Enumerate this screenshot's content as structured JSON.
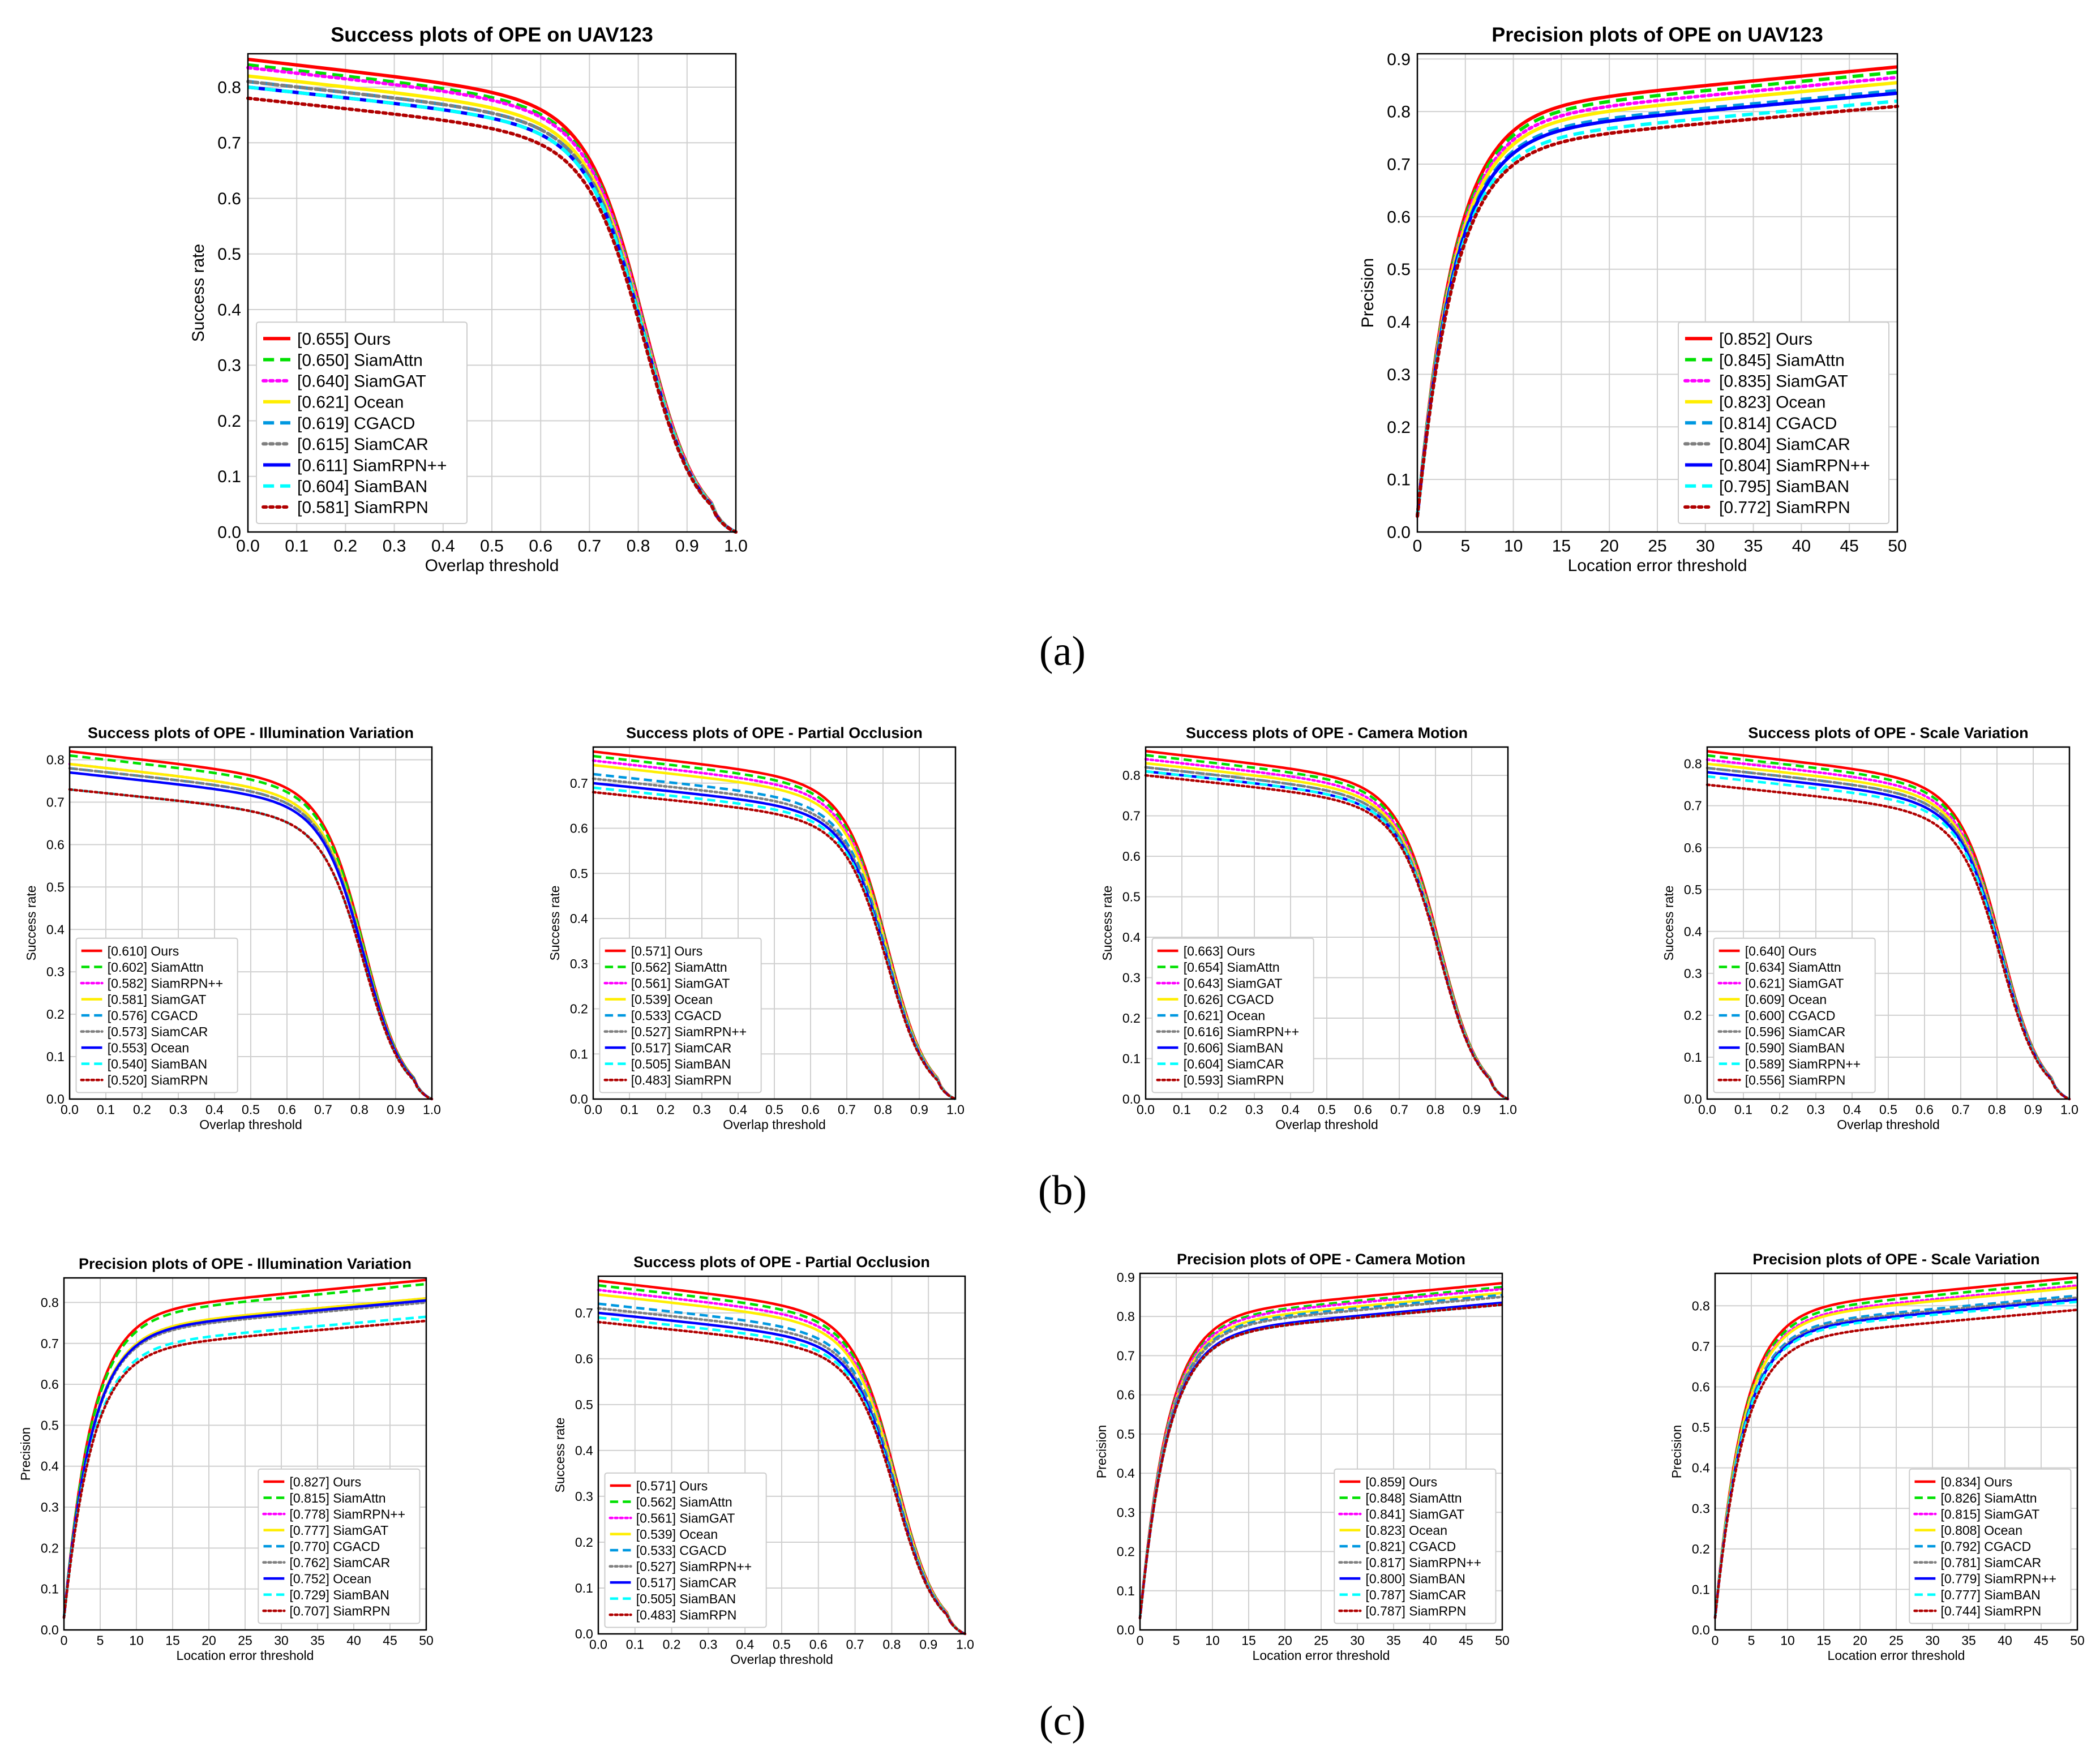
{
  "figure": {
    "panel_labels": [
      "(a)",
      "(b)",
      "(c)"
    ]
  },
  "styles": [
    {
      "color": "#ff0000",
      "dash": "none"
    },
    {
      "color": "#00e000",
      "dash": "dash"
    },
    {
      "color": "#ff00ff",
      "dash": "dot"
    },
    {
      "color": "#ffee00",
      "dash": "none"
    },
    {
      "color": "#0098e0",
      "dash": "dash"
    },
    {
      "color": "#7f7f7f",
      "dash": "dot"
    },
    {
      "color": "#0000ff",
      "dash": "none"
    },
    {
      "color": "#00ffff",
      "dash": "dash"
    },
    {
      "color": "#b00000",
      "dash": "dot"
    }
  ],
  "chart_data": [
    {
      "type": "line",
      "kind": "success",
      "title": "Success plots of OPE on UAV123",
      "xlabel": "Overlap threshold",
      "ylabel": "Success rate",
      "xlim": [
        0,
        1.0
      ],
      "ylim": [
        0,
        0.86
      ],
      "xticks": [
        "0.0",
        "0.1",
        "0.2",
        "0.3",
        "0.4",
        "0.5",
        "0.6",
        "0.7",
        "0.8",
        "0.9",
        "1.0"
      ],
      "yticks": [
        "0.0",
        "0.1",
        "0.2",
        "0.3",
        "0.4",
        "0.5",
        "0.6",
        "0.7",
        "0.8"
      ],
      "legend_position": "lower-left",
      "series": [
        {
          "name": "[0.655] Ours",
          "style": 0,
          "start": 0.85
        },
        {
          "name": "[0.650] SiamAttn",
          "style": 1,
          "start": 0.84
        },
        {
          "name": "[0.640] SiamGAT",
          "style": 2,
          "start": 0.835
        },
        {
          "name": "[0.621] Ocean",
          "style": 3,
          "start": 0.82
        },
        {
          "name": "[0.619] CGACD",
          "style": 4,
          "start": 0.81
        },
        {
          "name": "[0.615] SiamCAR",
          "style": 5,
          "start": 0.81
        },
        {
          "name": "[0.611] SiamRPN++",
          "style": 6,
          "start": 0.8
        },
        {
          "name": "[0.604] SiamBAN",
          "style": 7,
          "start": 0.8
        },
        {
          "name": "[0.581] SiamRPN",
          "style": 8,
          "start": 0.78
        }
      ]
    },
    {
      "type": "line",
      "kind": "precision",
      "title": "Precision plots of OPE on UAV123",
      "xlabel": "Location error threshold",
      "ylabel": "Precision",
      "xlim": [
        0,
        50
      ],
      "ylim": [
        0,
        0.91
      ],
      "xticks": [
        "0",
        "5",
        "10",
        "15",
        "20",
        "25",
        "30",
        "35",
        "40",
        "45",
        "50"
      ],
      "yticks": [
        "0.0",
        "0.1",
        "0.2",
        "0.3",
        "0.4",
        "0.5",
        "0.6",
        "0.7",
        "0.8",
        "0.9"
      ],
      "legend_position": "lower-right",
      "series": [
        {
          "name": "[0.852] Ours",
          "style": 0,
          "end": 0.885
        },
        {
          "name": "[0.845] SiamAttn",
          "style": 1,
          "end": 0.875
        },
        {
          "name": "[0.835] SiamGAT",
          "style": 2,
          "end": 0.865
        },
        {
          "name": "[0.823] Ocean",
          "style": 3,
          "end": 0.855
        },
        {
          "name": "[0.814] CGACD",
          "style": 4,
          "end": 0.84
        },
        {
          "name": "[0.804] SiamCAR",
          "style": 5,
          "end": 0.835
        },
        {
          "name": "[0.804] SiamRPN++",
          "style": 6,
          "end": 0.835
        },
        {
          "name": "[0.795] SiamBAN",
          "style": 7,
          "end": 0.82
        },
        {
          "name": "[0.772] SiamRPN",
          "style": 8,
          "end": 0.81
        }
      ]
    },
    {
      "type": "line",
      "kind": "success",
      "title": "Success plots of OPE - Illumination Variation",
      "xlabel": "Overlap threshold",
      "ylabel": "Success rate",
      "xlim": [
        0,
        1.0
      ],
      "ylim": [
        0,
        0.83
      ],
      "xticks": [
        "0.0",
        "0.1",
        "0.2",
        "0.3",
        "0.4",
        "0.5",
        "0.6",
        "0.7",
        "0.8",
        "0.9",
        "1.0"
      ],
      "yticks": [
        "0.0",
        "0.1",
        "0.2",
        "0.3",
        "0.4",
        "0.5",
        "0.6",
        "0.7",
        "0.8"
      ],
      "legend_position": "lower-left",
      "series": [
        {
          "name": "[0.610] Ours",
          "style": 0,
          "start": 0.82
        },
        {
          "name": "[0.602] SiamAttn",
          "style": 1,
          "start": 0.81
        },
        {
          "name": "[0.582] SiamRPN++",
          "style": 2,
          "start": 0.79
        },
        {
          "name": "[0.581] SiamGAT",
          "style": 3,
          "start": 0.79
        },
        {
          "name": "[0.576] CGACD",
          "style": 4,
          "start": 0.78
        },
        {
          "name": "[0.573] SiamCAR",
          "style": 5,
          "start": 0.78
        },
        {
          "name": "[0.553] Ocean",
          "style": 6,
          "start": 0.77
        },
        {
          "name": "[0.540] SiamBAN",
          "style": 7,
          "start": 0.73
        },
        {
          "name": "[0.520] SiamRPN",
          "style": 8,
          "start": 0.73
        }
      ]
    },
    {
      "type": "line",
      "kind": "success",
      "title": "Success plots of OPE - Partial Occlusion",
      "xlabel": "Overlap threshold",
      "ylabel": "Success rate",
      "xlim": [
        0,
        1.0
      ],
      "ylim": [
        0,
        0.78
      ],
      "xticks": [
        "0.0",
        "0.1",
        "0.2",
        "0.3",
        "0.4",
        "0.5",
        "0.6",
        "0.7",
        "0.8",
        "0.9",
        "1.0"
      ],
      "yticks": [
        "0.0",
        "0.1",
        "0.2",
        "0.3",
        "0.4",
        "0.5",
        "0.6",
        "0.7"
      ],
      "legend_position": "lower-left",
      "series": [
        {
          "name": "[0.571] Ours",
          "style": 0,
          "start": 0.77
        },
        {
          "name": "[0.562] SiamAttn",
          "style": 1,
          "start": 0.76
        },
        {
          "name": "[0.561] SiamGAT",
          "style": 2,
          "start": 0.75
        },
        {
          "name": "[0.539] Ocean",
          "style": 3,
          "start": 0.74
        },
        {
          "name": "[0.533] CGACD",
          "style": 4,
          "start": 0.72
        },
        {
          "name": "[0.527] SiamRPN++",
          "style": 5,
          "start": 0.71
        },
        {
          "name": "[0.517] SiamCAR",
          "style": 6,
          "start": 0.7
        },
        {
          "name": "[0.505] SiamBAN",
          "style": 7,
          "start": 0.69
        },
        {
          "name": "[0.483] SiamRPN",
          "style": 8,
          "start": 0.68
        }
      ]
    },
    {
      "type": "line",
      "kind": "success",
      "title": "Success plots of OPE - Camera Motion",
      "xlabel": "Overlap threshold",
      "ylabel": "Success rate",
      "xlim": [
        0,
        1.0
      ],
      "ylim": [
        0,
        0.87
      ],
      "xticks": [
        "0.0",
        "0.1",
        "0.2",
        "0.3",
        "0.4",
        "0.5",
        "0.6",
        "0.7",
        "0.8",
        "0.9",
        "1.0"
      ],
      "yticks": [
        "0.0",
        "0.1",
        "0.2",
        "0.3",
        "0.4",
        "0.5",
        "0.6",
        "0.7",
        "0.8"
      ],
      "legend_position": "lower-left",
      "series": [
        {
          "name": "[0.663] Ours",
          "style": 0,
          "start": 0.86
        },
        {
          "name": "[0.654] SiamAttn",
          "style": 1,
          "start": 0.85
        },
        {
          "name": "[0.643] SiamGAT",
          "style": 2,
          "start": 0.84
        },
        {
          "name": "[0.626] CGACD",
          "style": 3,
          "start": 0.83
        },
        {
          "name": "[0.621] Ocean",
          "style": 4,
          "start": 0.82
        },
        {
          "name": "[0.616] SiamRPN++",
          "style": 5,
          "start": 0.82
        },
        {
          "name": "[0.606] SiamBAN",
          "style": 6,
          "start": 0.81
        },
        {
          "name": "[0.604] SiamCAR",
          "style": 7,
          "start": 0.81
        },
        {
          "name": "[0.593] SiamRPN",
          "style": 8,
          "start": 0.8
        }
      ]
    },
    {
      "type": "line",
      "kind": "success",
      "title": "Success plots of OPE - Scale Variation",
      "xlabel": "Overlap threshold",
      "ylabel": "Success rate",
      "xlim": [
        0,
        1.0
      ],
      "ylim": [
        0,
        0.84
      ],
      "xticks": [
        "0.0",
        "0.1",
        "0.2",
        "0.3",
        "0.4",
        "0.5",
        "0.6",
        "0.7",
        "0.8",
        "0.9",
        "1.0"
      ],
      "yticks": [
        "0.0",
        "0.1",
        "0.2",
        "0.3",
        "0.4",
        "0.5",
        "0.6",
        "0.7",
        "0.8"
      ],
      "legend_position": "lower-left",
      "series": [
        {
          "name": "[0.640] Ours",
          "style": 0,
          "start": 0.83
        },
        {
          "name": "[0.634] SiamAttn",
          "style": 1,
          "start": 0.82
        },
        {
          "name": "[0.621] SiamGAT",
          "style": 2,
          "start": 0.81
        },
        {
          "name": "[0.609] Ocean",
          "style": 3,
          "start": 0.8
        },
        {
          "name": "[0.600] CGACD",
          "style": 4,
          "start": 0.79
        },
        {
          "name": "[0.596] SiamCAR",
          "style": 5,
          "start": 0.79
        },
        {
          "name": "[0.590] SiamBAN",
          "style": 6,
          "start": 0.78
        },
        {
          "name": "[0.589] SiamRPN++",
          "style": 7,
          "start": 0.77
        },
        {
          "name": "[0.556] SiamRPN",
          "style": 8,
          "start": 0.75
        }
      ]
    },
    {
      "type": "line",
      "kind": "precision",
      "title": "Precision plots of OPE - Illumination Variation",
      "xlabel": "Location error threshold",
      "ylabel": "Precision",
      "xlim": [
        0,
        50
      ],
      "ylim": [
        0,
        0.86
      ],
      "xticks": [
        "0",
        "5",
        "10",
        "15",
        "20",
        "25",
        "30",
        "35",
        "40",
        "45",
        "50"
      ],
      "yticks": [
        "0.0",
        "0.1",
        "0.2",
        "0.3",
        "0.4",
        "0.5",
        "0.6",
        "0.7",
        "0.8"
      ],
      "legend_position": "lower-right",
      "series": [
        {
          "name": "[0.827] Ours",
          "style": 0,
          "end": 0.855
        },
        {
          "name": "[0.815] SiamAttn",
          "style": 1,
          "end": 0.845
        },
        {
          "name": "[0.778] SiamRPN++",
          "style": 2,
          "end": 0.81
        },
        {
          "name": "[0.777] SiamGAT",
          "style": 3,
          "end": 0.81
        },
        {
          "name": "[0.770] CGACD",
          "style": 4,
          "end": 0.805
        },
        {
          "name": "[0.762] SiamCAR",
          "style": 5,
          "end": 0.8
        },
        {
          "name": "[0.752] Ocean",
          "style": 6,
          "end": 0.805
        },
        {
          "name": "[0.729] SiamBAN",
          "style": 7,
          "end": 0.765
        },
        {
          "name": "[0.707] SiamRPN",
          "style": 8,
          "end": 0.755
        }
      ]
    },
    {
      "type": "line",
      "kind": "success",
      "title": "Success plots of OPE - Partial Occlusion",
      "xlabel": "Overlap threshold",
      "ylabel": "Success rate",
      "xlim": [
        0,
        1.0
      ],
      "ylim": [
        0,
        0.78
      ],
      "xticks": [
        "0.0",
        "0.1",
        "0.2",
        "0.3",
        "0.4",
        "0.5",
        "0.6",
        "0.7",
        "0.8",
        "0.9",
        "1.0"
      ],
      "yticks": [
        "0.0",
        "0.1",
        "0.2",
        "0.3",
        "0.4",
        "0.5",
        "0.6",
        "0.7"
      ],
      "legend_position": "lower-left",
      "series": [
        {
          "name": "[0.571] Ours",
          "style": 0,
          "start": 0.77
        },
        {
          "name": "[0.562] SiamAttn",
          "style": 1,
          "start": 0.76
        },
        {
          "name": "[0.561] SiamGAT",
          "style": 2,
          "start": 0.75
        },
        {
          "name": "[0.539] Ocean",
          "style": 3,
          "start": 0.74
        },
        {
          "name": "[0.533] CGACD",
          "style": 4,
          "start": 0.72
        },
        {
          "name": "[0.527] SiamRPN++",
          "style": 5,
          "start": 0.71
        },
        {
          "name": "[0.517] SiamCAR",
          "style": 6,
          "start": 0.7
        },
        {
          "name": "[0.505] SiamBAN",
          "style": 7,
          "start": 0.69
        },
        {
          "name": "[0.483] SiamRPN",
          "style": 8,
          "start": 0.68
        }
      ]
    },
    {
      "type": "line",
      "kind": "precision",
      "title": "Precision plots of OPE - Camera Motion",
      "xlabel": "Location error threshold",
      "ylabel": "Precision",
      "xlim": [
        0,
        50
      ],
      "ylim": [
        0,
        0.91
      ],
      "xticks": [
        "0",
        "5",
        "10",
        "15",
        "20",
        "25",
        "30",
        "35",
        "40",
        "45",
        "50"
      ],
      "yticks": [
        "0.0",
        "0.1",
        "0.2",
        "0.3",
        "0.4",
        "0.5",
        "0.6",
        "0.7",
        "0.8",
        "0.9"
      ],
      "legend_position": "lower-right",
      "series": [
        {
          "name": "[0.859] Ours",
          "style": 0,
          "end": 0.885
        },
        {
          "name": "[0.848] SiamAttn",
          "style": 1,
          "end": 0.875
        },
        {
          "name": "[0.841] SiamGAT",
          "style": 2,
          "end": 0.87
        },
        {
          "name": "[0.823] Ocean",
          "style": 3,
          "end": 0.86
        },
        {
          "name": "[0.821] CGACD",
          "style": 4,
          "end": 0.855
        },
        {
          "name": "[0.817] SiamRPN++",
          "style": 5,
          "end": 0.85
        },
        {
          "name": "[0.800] SiamBAN",
          "style": 6,
          "end": 0.835
        },
        {
          "name": "[0.787] SiamCAR",
          "style": 7,
          "end": 0.83
        },
        {
          "name": "[0.787] SiamRPN",
          "style": 8,
          "end": 0.83
        }
      ]
    },
    {
      "type": "line",
      "kind": "precision",
      "title": "Precision plots of OPE - Scale Variation",
      "xlabel": "Location error threshold",
      "ylabel": "Precision",
      "xlim": [
        0,
        50
      ],
      "ylim": [
        0,
        0.88
      ],
      "xticks": [
        "0",
        "5",
        "10",
        "15",
        "20",
        "25",
        "30",
        "35",
        "40",
        "45",
        "50"
      ],
      "yticks": [
        "0.0",
        "0.1",
        "0.2",
        "0.3",
        "0.4",
        "0.5",
        "0.6",
        "0.7",
        "0.8"
      ],
      "legend_position": "lower-right",
      "series": [
        {
          "name": "[0.834] Ours",
          "style": 0,
          "end": 0.87
        },
        {
          "name": "[0.826] SiamAttn",
          "style": 1,
          "end": 0.86
        },
        {
          "name": "[0.815] SiamGAT",
          "style": 2,
          "end": 0.85
        },
        {
          "name": "[0.808] Ocean",
          "style": 3,
          "end": 0.845
        },
        {
          "name": "[0.792] CGACD",
          "style": 4,
          "end": 0.825
        },
        {
          "name": "[0.781] SiamCAR",
          "style": 5,
          "end": 0.82
        },
        {
          "name": "[0.779] SiamRPN++",
          "style": 6,
          "end": 0.815
        },
        {
          "name": "[0.777] SiamBAN",
          "style": 7,
          "end": 0.81
        },
        {
          "name": "[0.744] SiamRPN",
          "style": 8,
          "end": 0.79
        }
      ]
    }
  ]
}
